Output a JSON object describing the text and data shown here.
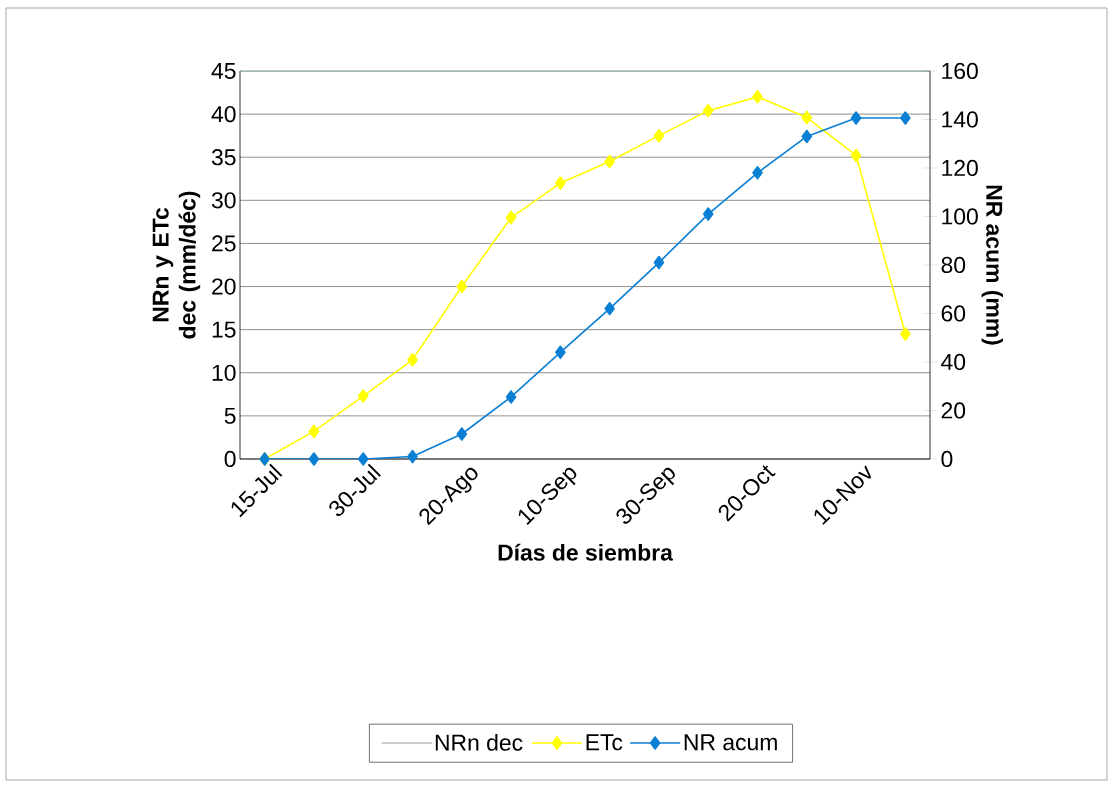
{
  "chart_data": {
    "type": "line",
    "xlabel": "Días de siembra",
    "ylabel": "NRn y ETc dec (mm/déc)",
    "y2label": "NR acum (mm)",
    "categories": [
      "15-Jul",
      null,
      "30-Jul",
      null,
      "20-Ago",
      null,
      "10-Sep",
      null,
      "30-Sep",
      null,
      "20-Oct",
      null,
      "10-Nov",
      null
    ],
    "series": [
      {
        "name": "NRn dec",
        "values": [
          null,
          null,
          null,
          null,
          null,
          null,
          null,
          null,
          null,
          null,
          null,
          null,
          null,
          null
        ]
      },
      {
        "name": "ETc",
        "color": "#ffff00",
        "values": [
          0,
          3.2,
          7.3,
          11.5,
          20,
          28,
          32,
          34.5,
          37.5,
          40.4,
          42,
          39.6,
          35.2,
          14.5
        ]
      },
      {
        "name": "NR acum",
        "color": "#0a7fd4",
        "axis": "y2",
        "values": [
          0,
          0,
          0,
          1,
          10.3,
          25.6,
          44,
          62,
          81,
          101,
          118,
          133,
          140.6,
          140.6
        ]
      }
    ],
    "ylim": [
      0,
      45
    ],
    "yticks": [
      0,
      5,
      10,
      15,
      20,
      25,
      30,
      35,
      40,
      45
    ],
    "y2lim": [
      0,
      160
    ],
    "y2ticks": [
      0,
      20,
      40,
      60,
      80,
      100,
      120,
      140,
      160
    ],
    "grid": "y",
    "legend": "bottom",
    "marker": "diamond",
    "line_style": "solid"
  }
}
